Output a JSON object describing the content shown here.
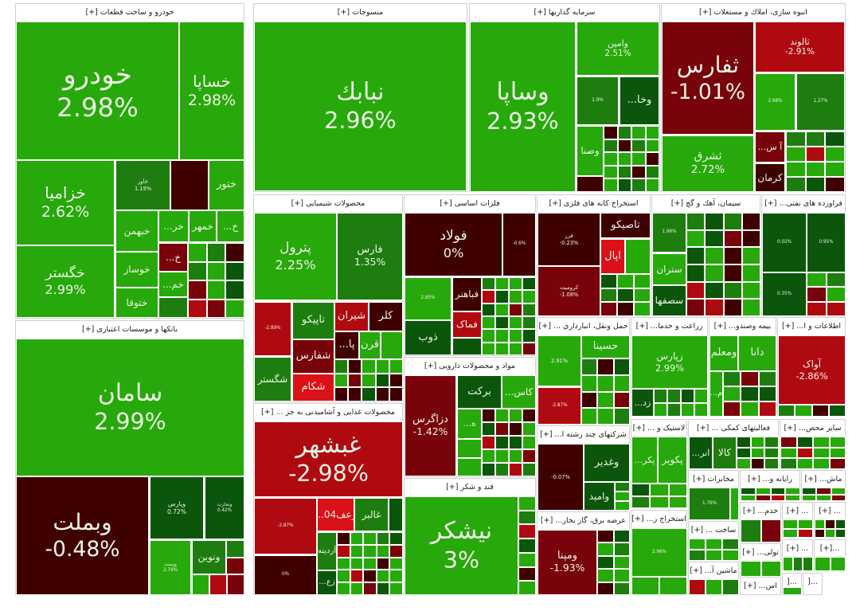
{
  "palette": {
    "G1": "#27a90b",
    "G2": "#1d7e0f",
    "G3": "#0b560b",
    "R1": "#3f0000",
    "R2": "#78030a",
    "R3": "#b00a11",
    "R4": "#db1119"
  },
  "sectors": [
    {
      "title": "خودرو و ساخت قطعات [+]",
      "tiles": [
        {
          "symbol": "خودرو",
          "change": "2.98%",
          "color": "#27a90b"
        },
        {
          "symbol": "خساپا",
          "change": "2.98%",
          "color": "#27a90b"
        },
        {
          "symbol": "خزامیا",
          "change": "2.62%",
          "color": "#27a90b"
        },
        {
          "symbol": "خگستر",
          "change": "2.99%",
          "color": "#27a90b"
        },
        {
          "symbol": "خاور",
          "change": "1.19%",
          "color": "#1d7e0f"
        },
        {
          "symbol": "ختور",
          "change": "",
          "color": "#27a90b"
        },
        {
          "symbol": "خبهمن",
          "change": "",
          "color": "#27a90b"
        },
        {
          "symbol": "خر...",
          "change": "",
          "color": "#27a90b"
        },
        {
          "symbol": "خمهر",
          "change": "",
          "color": "#27a90b"
        },
        {
          "symbol": "خ...",
          "change": "",
          "color": "#27a90b"
        },
        {
          "symbol": "خوساز",
          "change": "",
          "color": "#27a90b"
        },
        {
          "symbol": "ختوقا",
          "change": "",
          "color": "#27a90b"
        },
        {
          "symbol": "خ...",
          "change": "",
          "color": "#78030a"
        },
        {
          "symbol": "خم...",
          "change": "",
          "color": "#27a90b"
        }
      ]
    },
    {
      "title": "منسوجات [+]",
      "tiles": [
        {
          "symbol": "نبابك",
          "change": "2.96%",
          "color": "#27a90b"
        }
      ]
    },
    {
      "title": "سرمایه گذاریها [+]",
      "tiles": [
        {
          "symbol": "وساپا",
          "change": "2.93%",
          "color": "#27a90b"
        },
        {
          "symbol": "وامین",
          "change": "2.51%",
          "color": "#27a90b"
        },
        {
          "symbol": "",
          "change": "1.9%",
          "color": "#1d7e0f"
        },
        {
          "symbol": "وخا...",
          "change": "",
          "color": "#0b560b"
        },
        {
          "symbol": "وصنا",
          "change": "",
          "color": "#27a90b"
        }
      ]
    },
    {
      "title": "انبوه سازی، املاك و مستغلات [+]",
      "tiles": [
        {
          "symbol": "ثفارس",
          "change": "-1.01%",
          "color": "#78030a"
        },
        {
          "symbol": "ثالوند",
          "change": "-2.91%",
          "color": "#b00a11"
        },
        {
          "symbol": "",
          "change": "2.98%",
          "color": "#27a90b"
        },
        {
          "symbol": "",
          "change": "1.27%",
          "color": "#1d7e0f"
        },
        {
          "symbol": "ثشرق",
          "change": "2.72%",
          "color": "#27a90b"
        },
        {
          "symbol": "آ س...",
          "change": "",
          "color": "#78030a"
        },
        {
          "symbol": "کرمان",
          "change": "",
          "color": "#3f0000"
        }
      ]
    },
    {
      "title": "بانکها و موسسات اعتباری [+]",
      "tiles": [
        {
          "symbol": "سامان",
          "change": "2.99%",
          "color": "#27a90b"
        },
        {
          "symbol": "وبملت",
          "change": "-0.48%",
          "color": "#3f0000"
        },
        {
          "symbol": "وپارس",
          "change": "0.72%",
          "color": "#0b560b"
        },
        {
          "symbol": "وتجارت",
          "change": "0.42%",
          "color": "#0b560b"
        },
        {
          "symbol": "وپست",
          "change": "2.79%",
          "color": "#27a90b"
        },
        {
          "symbol": "ونوین",
          "change": "",
          "color": "#1d7e0f"
        }
      ]
    },
    {
      "title": "محصولات شیمیایی [+]",
      "tiles": [
        {
          "symbol": "پترول",
          "change": "2.25%",
          "color": "#27a90b"
        },
        {
          "symbol": "فارس",
          "change": "1.35%",
          "color": "#1d7e0f"
        },
        {
          "symbol": "",
          "change": "-2.89%",
          "color": "#b00a11"
        },
        {
          "symbol": "شگستر",
          "change": "",
          "color": "#1d7e0f"
        },
        {
          "symbol": "تاپیکو",
          "change": "",
          "color": "#1d7e0f"
        },
        {
          "symbol": "شفارس",
          "change": "",
          "color": "#78030a"
        },
        {
          "symbol": "شکام",
          "change": "",
          "color": "#db1119"
        },
        {
          "symbol": "شیران",
          "change": "",
          "color": "#b00a11"
        },
        {
          "symbol": "کلر",
          "change": "",
          "color": "#3f0000"
        },
        {
          "symbol": "پا...",
          "change": "",
          "color": "#3f0000"
        },
        {
          "symbol": "قرن",
          "change": "",
          "color": "#27a90b"
        }
      ]
    },
    {
      "title": "فلزات اساسی [+]",
      "tiles": [
        {
          "symbol": "فولاد",
          "change": "0%",
          "color": "#3f0000"
        },
        {
          "symbol": "",
          "change": "-0.6%",
          "color": "#3f0000"
        },
        {
          "symbol": "",
          "change": "2.85%",
          "color": "#27a90b"
        },
        {
          "symbol": "ذوب",
          "change": "",
          "color": "#0b560b"
        },
        {
          "symbol": "فباهنر",
          "change": "",
          "color": "#3f0000"
        },
        {
          "symbol": "فماک",
          "change": "",
          "color": "#b00a11"
        }
      ]
    },
    {
      "title": "مواد و محصولات دارویی [+]",
      "tiles": [
        {
          "symbol": "دزاگرس",
          "change": "-1.42%",
          "color": "#78030a"
        },
        {
          "symbol": "برکت",
          "change": "",
          "color": "#0b560b"
        },
        {
          "symbol": "کاس...",
          "change": "",
          "color": "#27a90b"
        },
        {
          "symbol": "ه...",
          "change": "",
          "color": "#27a90b"
        }
      ]
    },
    {
      "title": "قند و شکر [+]",
      "tiles": [
        {
          "symbol": "نیشکر",
          "change": "3%",
          "color": "#27a90b"
        }
      ]
    },
    {
      "title": "محصولات غذایی و آشامیدنی به جز ... [+]",
      "tiles": [
        {
          "symbol": "غبشهر",
          "change": "-2.98%",
          "color": "#b00a11"
        },
        {
          "symbol": "",
          "change": "-2.87%",
          "color": "#b00a11"
        },
        {
          "symbol": "زعف04...",
          "change": "",
          "color": "#db1119"
        },
        {
          "symbol": "غالبر",
          "change": "",
          "color": "#1d7e0f"
        },
        {
          "symbol": "",
          "change": "0%",
          "color": "#3f0000"
        },
        {
          "symbol": "آردینه",
          "change": "",
          "color": "#1d7e0f"
        },
        {
          "symbol": "زع...",
          "change": "",
          "color": "#0b560b"
        }
      ]
    },
    {
      "title": "استخراج کانه های فلزی [+]",
      "tiles": [
        {
          "symbol": "فزر",
          "change": "-0.23%",
          "color": "#3f0000"
        },
        {
          "symbol": "تاصیکو",
          "change": "",
          "color": "#3f0000"
        },
        {
          "symbol": "اپال",
          "change": "",
          "color": "#db1119"
        },
        {
          "symbol": "کرومیت",
          "change": "-1.08%",
          "color": "#78030a"
        }
      ]
    },
    {
      "title": "سیمان، آهك و گچ [+]",
      "tiles": [
        {
          "symbol": "",
          "change": "1.96%",
          "color": "#1d7e0f"
        },
        {
          "symbol": "ستران",
          "change": "",
          "color": "#27a90b"
        },
        {
          "symbol": "سصفها",
          "change": "",
          "color": "#0b560b"
        }
      ]
    },
    {
      "title": "فراورده های نفتی... [+]",
      "tiles": [
        {
          "symbol": "",
          "change": "0.02%",
          "color": "#0b560b"
        },
        {
          "symbol": "",
          "change": "0.95%",
          "color": "#0b560b"
        },
        {
          "symbol": "",
          "change": "0.35%",
          "color": "#0b560b"
        }
      ]
    },
    {
      "title": "حمل ونقل، انبارداري ... [+]",
      "tiles": [
        {
          "symbol": "",
          "change": "2.91%",
          "color": "#27a90b"
        },
        {
          "symbol": "حسینا",
          "change": "",
          "color": "#27a90b"
        },
        {
          "symbol": "",
          "change": "-2.87%",
          "color": "#b00a11"
        }
      ]
    },
    {
      "title": "زراعت و خدما... [+]",
      "tiles": [
        {
          "symbol": "زپارس",
          "change": "2.99%",
          "color": "#27a90b"
        },
        {
          "symbol": "زد...",
          "change": "",
          "color": "#0b560b"
        }
      ]
    },
    {
      "title": "بیمه وصندو... [+]",
      "tiles": [
        {
          "symbol": "ومعلم",
          "change": "",
          "color": "#27a90b"
        },
        {
          "symbol": "دانا",
          "change": "",
          "color": "#27a90b"
        },
        {
          "symbol": "م...",
          "change": "",
          "color": "#27a90b"
        }
      ]
    },
    {
      "title": "اطلاعات و ا... [+]",
      "tiles": [
        {
          "symbol": "آواک",
          "change": "-2.86%",
          "color": "#b00a11"
        }
      ]
    },
    {
      "title": "شرکتهای چند رشته ا... [+]",
      "tiles": [
        {
          "symbol": "",
          "change": "-0.07%",
          "color": "#3f0000"
        },
        {
          "symbol": "وغدیر",
          "change": "",
          "color": "#0b560b"
        },
        {
          "symbol": "وامید",
          "change": "",
          "color": "#0b560b"
        }
      ]
    },
    {
      "title": "عرضه برق، گاز بخار... [+]",
      "tiles": [
        {
          "symbol": "ومپنا",
          "change": "-1.93%",
          "color": "#78030a"
        }
      ]
    },
    {
      "title": "لاستیک و ... [+]",
      "tiles": [
        {
          "symbol": "پکر...",
          "change": "",
          "color": "#27a90b"
        },
        {
          "symbol": "پکویر",
          "change": "",
          "color": "#27a90b"
        }
      ]
    },
    {
      "title": "استخراج ز... [+]",
      "tiles": [
        {
          "symbol": "",
          "change": "2.96%",
          "color": "#27a90b"
        }
      ]
    },
    {
      "title": "فعالیتهای کمکی ... [+]",
      "tiles": [
        {
          "symbol": "انر...",
          "change": "",
          "color": "#0b560b"
        },
        {
          "symbol": "کالا",
          "change": "",
          "color": "#1d7e0f"
        }
      ]
    },
    {
      "title": "سایر محص... [+]",
      "tiles": []
    },
    {
      "title": "مخابرات [+]",
      "tiles": [
        {
          "symbol": "",
          "change": "1.76%",
          "color": "#1d7e0f"
        }
      ]
    },
    {
      "title": "رایانه و... [+]",
      "tiles": []
    },
    {
      "title": "ماش... [+]",
      "tiles": []
    },
    {
      "title": "ساخت ... [+]",
      "tiles": []
    },
    {
      "title": "ماشین آ... [+]",
      "tiles": []
    },
    {
      "title": "خدم... [+]",
      "tiles": []
    },
    {
      "title": "تولی... [+]",
      "tiles": []
    },
    {
      "title": "اس... [+]",
      "tiles": []
    },
    {
      "title": "... [+]",
      "tiles": []
    },
    {
      "title": "... [+]",
      "tiles": []
    },
    {
      "title": "... [+]",
      "tiles": []
    },
    {
      "title": "...[+]",
      "tiles": []
    },
    {
      "title": "...[",
      "tiles": []
    },
    {
      "title": "...[",
      "tiles": []
    }
  ]
}
